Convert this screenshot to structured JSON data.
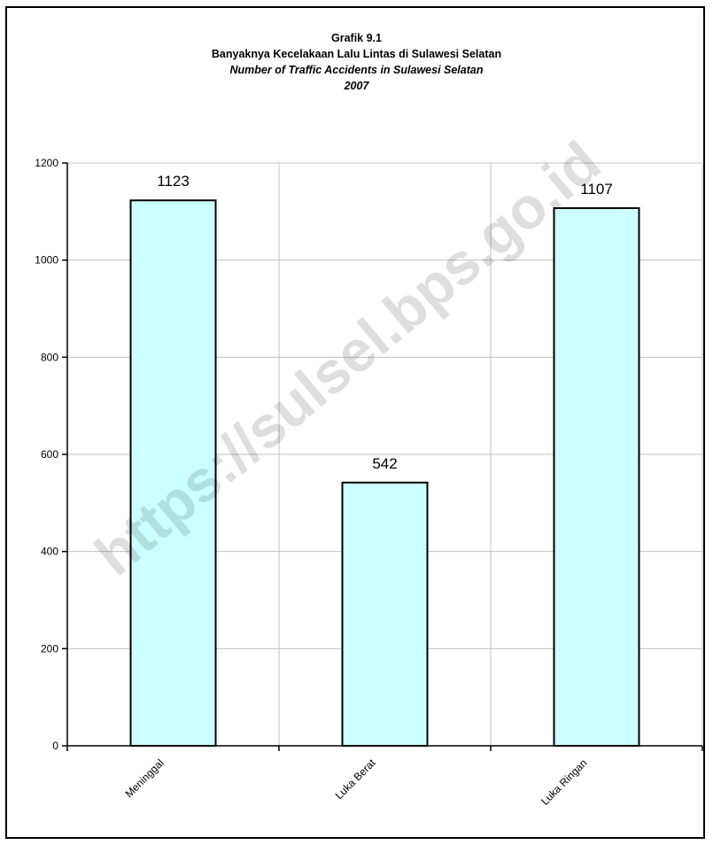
{
  "chart_data": {
    "type": "bar",
    "title": "Grafik 9.1",
    "subtitle_id": "Banyaknya Kecelakaan Lalu Lintas di Sulawesi Selatan",
    "subtitle_en": "Number of Traffic Accidents in Sulawesi Selatan",
    "year": "2007",
    "categories": [
      "Meninggal",
      "Luka Berat",
      "Luka Ringan"
    ],
    "values": [
      1123,
      542,
      1107
    ],
    "data_labels": [
      "1123",
      "542",
      "1107"
    ],
    "ylim": [
      0,
      1200
    ],
    "yticks": [
      0,
      200,
      400,
      600,
      800,
      1000,
      1200
    ],
    "grid": true,
    "bar_color": "#ccffff",
    "watermark": "https://sulsel.bps.go.id"
  }
}
